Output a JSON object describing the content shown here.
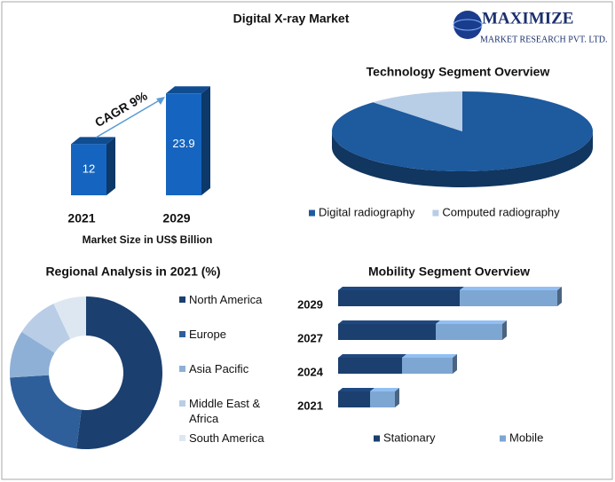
{
  "logo": {
    "name": "MAXIMIZE",
    "tagline": "MARKET RESEARCH PVT. LTD."
  },
  "chart_data": [
    {
      "type": "bar",
      "title": "Digital X-ray Market",
      "categories": [
        "2021",
        "2029"
      ],
      "values": [
        12,
        23.9
      ],
      "color": "#1565c0",
      "x_label": "Market Size in US$ Billion",
      "annotation": "CAGR 9%"
    },
    {
      "type": "pie",
      "title": "Technology Segment Overview",
      "categories": [
        "Digital radiography",
        "Computed radiography"
      ],
      "values": [
        88,
        12
      ],
      "colors": [
        "#1d5a9e",
        "#b8cde6"
      ],
      "legend": "bottom"
    },
    {
      "type": "donut",
      "title": "Regional Analysis in 2021 (%)",
      "categories": [
        "North America",
        "Europe",
        "Asia Pacific",
        "Middle East & Africa",
        "South America"
      ],
      "values": [
        52,
        22,
        10,
        9,
        7
      ],
      "colors": [
        "#1b3f6f",
        "#2f5f9a",
        "#8fb0d6",
        "#b9cde6",
        "#dde7f2"
      ],
      "legend": "right"
    },
    {
      "type": "stacked_barh",
      "title": "Mobility Segment Overview",
      "categories": [
        "2029",
        "2027",
        "2024",
        "2021"
      ],
      "series": [
        {
          "name": "Stationary",
          "color": "#1b3f6f",
          "values": [
            137,
            110,
            72,
            36
          ]
        },
        {
          "name": "Mobile",
          "color": "#7ea6d3",
          "values": [
            110,
            75,
            57,
            28
          ]
        }
      ],
      "legend": "bottom"
    }
  ]
}
